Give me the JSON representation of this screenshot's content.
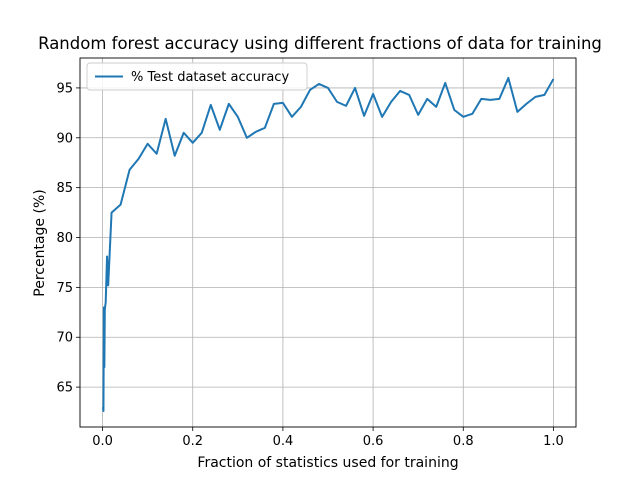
{
  "chart_data": {
    "type": "line",
    "title": "Random forest accuracy using different fractions of data for training",
    "xlabel": "Fraction of statistics used for training",
    "ylabel": "Percentage (%)",
    "xlim": [
      -0.05,
      1.05
    ],
    "ylim": [
      61,
      98
    ],
    "xticks": [
      0.0,
      0.2,
      0.4,
      0.6,
      0.8,
      1.0
    ],
    "xtick_labels": [
      "0.0",
      "0.2",
      "0.4",
      "0.6",
      "0.8",
      "1.0"
    ],
    "yticks": [
      65,
      70,
      75,
      80,
      85,
      90,
      95
    ],
    "ytick_labels": [
      "65",
      "70",
      "75",
      "80",
      "85",
      "90",
      "95"
    ],
    "grid": true,
    "legend_position": "top-left",
    "series": [
      {
        "name": "% Test dataset accuracy",
        "color": "#1f77b4",
        "x": [
          0.001,
          0.002,
          0.003,
          0.004,
          0.005,
          0.007,
          0.01,
          0.0125,
          0.02,
          0.04,
          0.06,
          0.08,
          0.1,
          0.12,
          0.14,
          0.16,
          0.18,
          0.2,
          0.22,
          0.24,
          0.26,
          0.28,
          0.3,
          0.32,
          0.34,
          0.36,
          0.38,
          0.4,
          0.42,
          0.44,
          0.46,
          0.48,
          0.5,
          0.52,
          0.54,
          0.56,
          0.58,
          0.6,
          0.62,
          0.64,
          0.66,
          0.68,
          0.7,
          0.72,
          0.74,
          0.76,
          0.78,
          0.8,
          0.82,
          0.84,
          0.86,
          0.88,
          0.9,
          0.92,
          0.94,
          0.96,
          0.98,
          1.0
        ],
        "y": [
          63.0,
          62.6,
          73.0,
          67.0,
          72.8,
          73.5,
          78.1,
          75.2,
          82.5,
          83.3,
          86.8,
          87.9,
          89.4,
          88.4,
          91.9,
          88.2,
          90.5,
          89.5,
          90.5,
          93.3,
          90.8,
          93.4,
          92.1,
          90.0,
          90.6,
          91.0,
          93.4,
          93.5,
          92.1,
          93.1,
          94.8,
          95.4,
          95.0,
          93.6,
          93.2,
          95.0,
          92.2,
          94.4,
          92.1,
          93.6,
          94.7,
          94.3,
          92.3,
          93.9,
          93.1,
          95.5,
          92.8,
          92.1,
          92.4,
          93.9,
          93.8,
          93.9,
          96.0,
          92.6,
          93.4,
          94.1,
          94.3,
          95.9
        ]
      }
    ]
  }
}
